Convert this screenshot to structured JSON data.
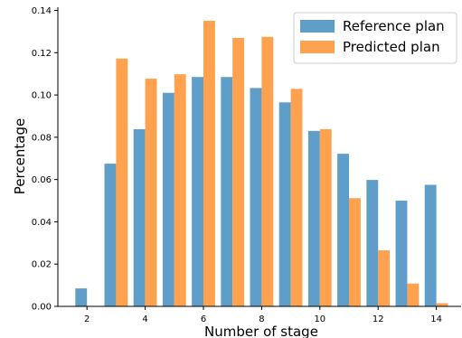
{
  "chart_data": {
    "type": "bar",
    "categories": [
      2,
      3,
      4,
      5,
      6,
      7,
      8,
      9,
      10,
      11,
      12,
      13,
      14
    ],
    "series": [
      {
        "name": "Reference plan",
        "color": "#5f9ec9",
        "values": [
          0.0085,
          0.0675,
          0.0838,
          0.101,
          0.1085,
          0.1085,
          0.1033,
          0.0965,
          0.083,
          0.0722,
          0.0598,
          0.05,
          0.0575
        ]
      },
      {
        "name": "Predicted plan",
        "color": "#fea24f",
        "values": [
          0.0,
          0.1172,
          0.1077,
          0.1098,
          0.1351,
          0.127,
          0.1275,
          0.1029,
          0.0838,
          0.0512,
          0.0265,
          0.0108,
          0.0015
        ]
      }
    ],
    "xlabel": "Number of stage",
    "ylabel": "Percentage",
    "xlim": [
      1.0,
      14.85
    ],
    "ylim": [
      0,
      0.1415
    ],
    "xticks": [
      2,
      4,
      6,
      8,
      10,
      12,
      14
    ],
    "xtick_labels": [
      "2",
      "4",
      "6",
      "8",
      "10",
      "12",
      "14"
    ],
    "yticks": [
      0.0,
      0.02,
      0.04,
      0.06,
      0.08,
      0.1,
      0.12,
      0.14
    ],
    "ytick_labels": [
      "0.00",
      "0.02",
      "0.04",
      "0.06",
      "0.08",
      "0.10",
      "0.12",
      "0.14"
    ],
    "grid": false,
    "legend_position": "top-right"
  }
}
